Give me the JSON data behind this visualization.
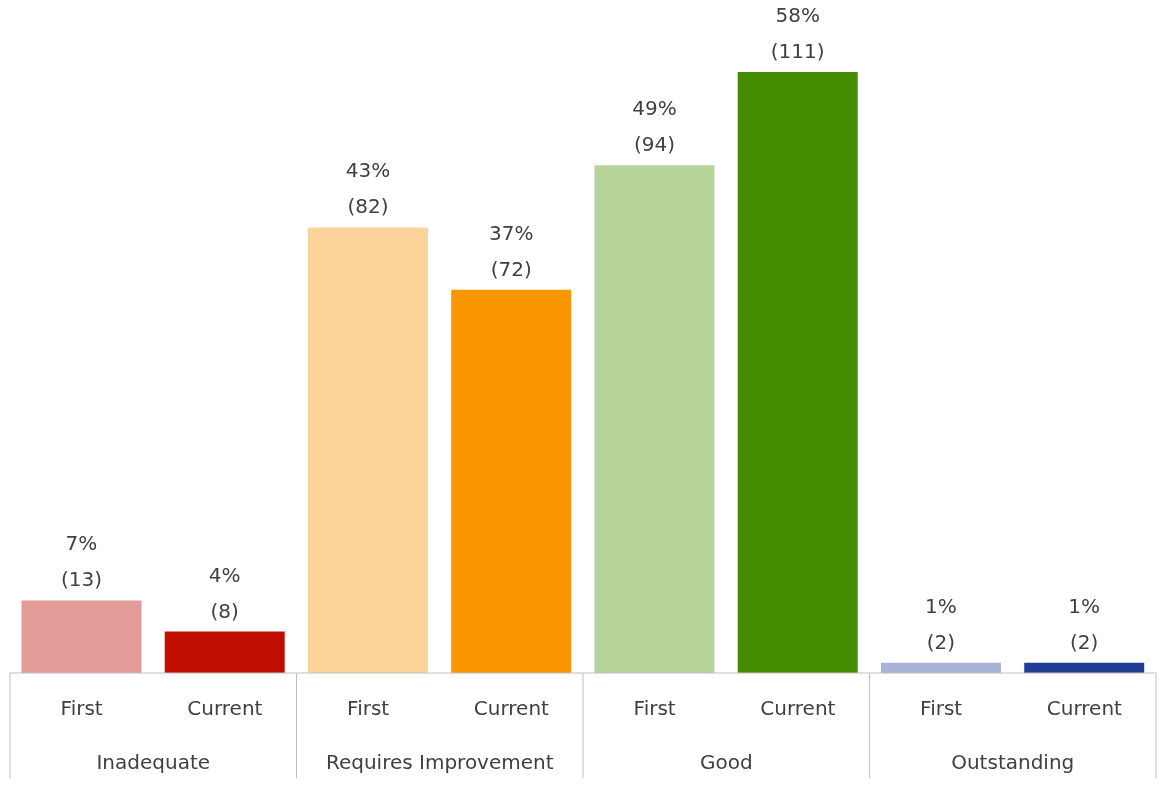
{
  "chart_data": {
    "type": "bar",
    "categories": [
      "First",
      "Current",
      "First",
      "Current",
      "First",
      "Current",
      "First",
      "Current"
    ],
    "values": [
      7,
      4,
      43,
      37,
      49,
      58,
      1,
      1
    ],
    "colors": [
      "#e39b97",
      "#c00f00",
      "#fcd399",
      "#fa9600",
      "#b6d39a",
      "#468c00",
      "#a7b3d8",
      "#203f94"
    ],
    "value_labels": [
      "7%\n(13)",
      "4%\n(8)",
      "43%\n(82)",
      "37%\n(72)",
      "49%\n(94)",
      "58%\n(111)",
      "1%\n(2)",
      "1%\n(2)"
    ],
    "annotations": [
      "Inadequate",
      "Requires Improvement",
      "Good",
      "Outstanding"
    ],
    "grid": false,
    "legend": false
  }
}
